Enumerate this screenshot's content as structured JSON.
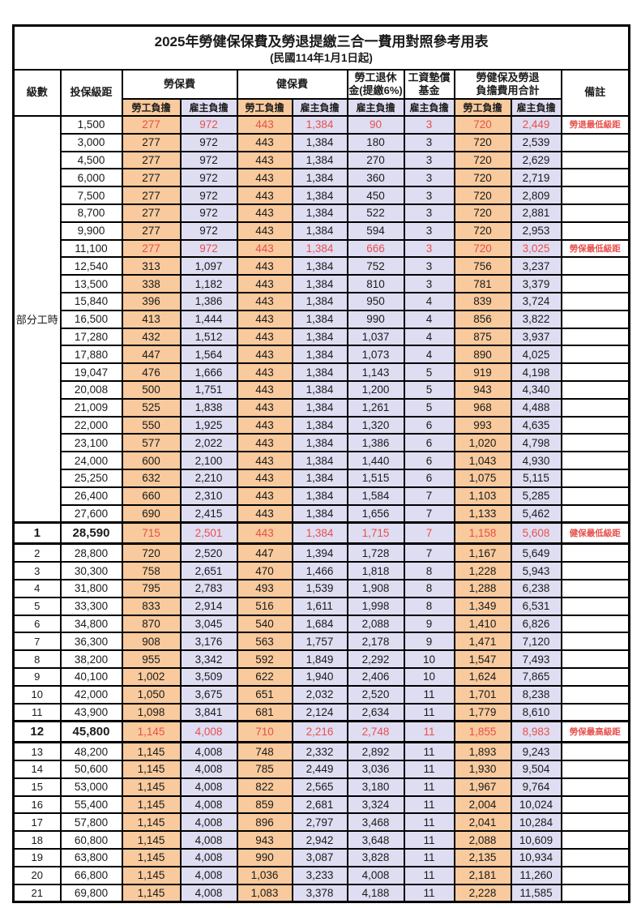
{
  "title": "2025年勞健保保費及勞退提繳三合一費用對照參考用表",
  "subtitle": "(民國114年1月1日起)",
  "colors": {
    "employee_bg": "#F8CA9D",
    "employer_bg": "#DFDDF2",
    "highlight_red": "#E8504C"
  },
  "header": {
    "level": "級數",
    "bracket": "投保級距",
    "labor_insurance": "勞保費",
    "health_insurance": "健保費",
    "pension_line1": "勞工退休",
    "pension_line2": "金(提繳6%)",
    "wage_fund_line1": "工資墊償",
    "wage_fund_line2": "基金",
    "total_line1": "勞健保及勞退",
    "total_line2": "負擔費用合計",
    "remark": "備註",
    "employee": "勞工負擔",
    "employer": "雇主負擔"
  },
  "part_time_label": "部分工時",
  "part_time_rowspan": 23,
  "rows": [
    {
      "level": "",
      "bracket": "1,500",
      "labor_emp": "277",
      "labor_er": "972",
      "health_emp": "443",
      "health_er": "1,384",
      "pension_er": "90",
      "wage_fund_er": "3",
      "total_emp": "720",
      "total_er": "2,449",
      "remark": "勞退最低級距",
      "highlight": true,
      "emphasis": false
    },
    {
      "level": "",
      "bracket": "3,000",
      "labor_emp": "277",
      "labor_er": "972",
      "health_emp": "443",
      "health_er": "1,384",
      "pension_er": "180",
      "wage_fund_er": "3",
      "total_emp": "720",
      "total_er": "2,539",
      "remark": "",
      "highlight": false,
      "emphasis": false
    },
    {
      "level": "",
      "bracket": "4,500",
      "labor_emp": "277",
      "labor_er": "972",
      "health_emp": "443",
      "health_er": "1,384",
      "pension_er": "270",
      "wage_fund_er": "3",
      "total_emp": "720",
      "total_er": "2,629",
      "remark": "",
      "highlight": false,
      "emphasis": false
    },
    {
      "level": "",
      "bracket": "6,000",
      "labor_emp": "277",
      "labor_er": "972",
      "health_emp": "443",
      "health_er": "1,384",
      "pension_er": "360",
      "wage_fund_er": "3",
      "total_emp": "720",
      "total_er": "2,719",
      "remark": "",
      "highlight": false,
      "emphasis": false
    },
    {
      "level": "",
      "bracket": "7,500",
      "labor_emp": "277",
      "labor_er": "972",
      "health_emp": "443",
      "health_er": "1,384",
      "pension_er": "450",
      "wage_fund_er": "3",
      "total_emp": "720",
      "total_er": "2,809",
      "remark": "",
      "highlight": false,
      "emphasis": false
    },
    {
      "level": "",
      "bracket": "8,700",
      "labor_emp": "277",
      "labor_er": "972",
      "health_emp": "443",
      "health_er": "1,384",
      "pension_er": "522",
      "wage_fund_er": "3",
      "total_emp": "720",
      "total_er": "2,881",
      "remark": "",
      "highlight": false,
      "emphasis": false
    },
    {
      "level": "",
      "bracket": "9,900",
      "labor_emp": "277",
      "labor_er": "972",
      "health_emp": "443",
      "health_er": "1,384",
      "pension_er": "594",
      "wage_fund_er": "3",
      "total_emp": "720",
      "total_er": "2,953",
      "remark": "",
      "highlight": false,
      "emphasis": false
    },
    {
      "level": "",
      "bracket": "11,100",
      "labor_emp": "277",
      "labor_er": "972",
      "health_emp": "443",
      "health_er": "1,384",
      "pension_er": "666",
      "wage_fund_er": "3",
      "total_emp": "720",
      "total_er": "3,025",
      "remark": "勞保最低級距",
      "highlight": true,
      "emphasis": false
    },
    {
      "level": "",
      "bracket": "12,540",
      "labor_emp": "313",
      "labor_er": "1,097",
      "health_emp": "443",
      "health_er": "1,384",
      "pension_er": "752",
      "wage_fund_er": "3",
      "total_emp": "756",
      "total_er": "3,237",
      "remark": "",
      "highlight": false,
      "emphasis": false
    },
    {
      "level": "",
      "bracket": "13,500",
      "labor_emp": "338",
      "labor_er": "1,182",
      "health_emp": "443",
      "health_er": "1,384",
      "pension_er": "810",
      "wage_fund_er": "3",
      "total_emp": "781",
      "total_er": "3,379",
      "remark": "",
      "highlight": false,
      "emphasis": false
    },
    {
      "level": "",
      "bracket": "15,840",
      "labor_emp": "396",
      "labor_er": "1,386",
      "health_emp": "443",
      "health_er": "1,384",
      "pension_er": "950",
      "wage_fund_er": "4",
      "total_emp": "839",
      "total_er": "3,724",
      "remark": "",
      "highlight": false,
      "emphasis": false
    },
    {
      "level": "",
      "bracket": "16,500",
      "labor_emp": "413",
      "labor_er": "1,444",
      "health_emp": "443",
      "health_er": "1,384",
      "pension_er": "990",
      "wage_fund_er": "4",
      "total_emp": "856",
      "total_er": "3,822",
      "remark": "",
      "highlight": false,
      "emphasis": false
    },
    {
      "level": "",
      "bracket": "17,280",
      "labor_emp": "432",
      "labor_er": "1,512",
      "health_emp": "443",
      "health_er": "1,384",
      "pension_er": "1,037",
      "wage_fund_er": "4",
      "total_emp": "875",
      "total_er": "3,937",
      "remark": "",
      "highlight": false,
      "emphasis": false
    },
    {
      "level": "",
      "bracket": "17,880",
      "labor_emp": "447",
      "labor_er": "1,564",
      "health_emp": "443",
      "health_er": "1,384",
      "pension_er": "1,073",
      "wage_fund_er": "4",
      "total_emp": "890",
      "total_er": "4,025",
      "remark": "",
      "highlight": false,
      "emphasis": false
    },
    {
      "level": "",
      "bracket": "19,047",
      "labor_emp": "476",
      "labor_er": "1,666",
      "health_emp": "443",
      "health_er": "1,384",
      "pension_er": "1,143",
      "wage_fund_er": "5",
      "total_emp": "919",
      "total_er": "4,198",
      "remark": "",
      "highlight": false,
      "emphasis": false
    },
    {
      "level": "",
      "bracket": "20,008",
      "labor_emp": "500",
      "labor_er": "1,751",
      "health_emp": "443",
      "health_er": "1,384",
      "pension_er": "1,200",
      "wage_fund_er": "5",
      "total_emp": "943",
      "total_er": "4,340",
      "remark": "",
      "highlight": false,
      "emphasis": false
    },
    {
      "level": "",
      "bracket": "21,009",
      "labor_emp": "525",
      "labor_er": "1,838",
      "health_emp": "443",
      "health_er": "1,384",
      "pension_er": "1,261",
      "wage_fund_er": "5",
      "total_emp": "968",
      "total_er": "4,488",
      "remark": "",
      "highlight": false,
      "emphasis": false
    },
    {
      "level": "",
      "bracket": "22,000",
      "labor_emp": "550",
      "labor_er": "1,925",
      "health_emp": "443",
      "health_er": "1,384",
      "pension_er": "1,320",
      "wage_fund_er": "6",
      "total_emp": "993",
      "total_er": "4,635",
      "remark": "",
      "highlight": false,
      "emphasis": false
    },
    {
      "level": "",
      "bracket": "23,100",
      "labor_emp": "577",
      "labor_er": "2,022",
      "health_emp": "443",
      "health_er": "1,384",
      "pension_er": "1,386",
      "wage_fund_er": "6",
      "total_emp": "1,020",
      "total_er": "4,798",
      "remark": "",
      "highlight": false,
      "emphasis": false
    },
    {
      "level": "",
      "bracket": "24,000",
      "labor_emp": "600",
      "labor_er": "2,100",
      "health_emp": "443",
      "health_er": "1,384",
      "pension_er": "1,440",
      "wage_fund_er": "6",
      "total_emp": "1,043",
      "total_er": "4,930",
      "remark": "",
      "highlight": false,
      "emphasis": false
    },
    {
      "level": "",
      "bracket": "25,250",
      "labor_emp": "632",
      "labor_er": "2,210",
      "health_emp": "443",
      "health_er": "1,384",
      "pension_er": "1,515",
      "wage_fund_er": "6",
      "total_emp": "1,075",
      "total_er": "5,115",
      "remark": "",
      "highlight": false,
      "emphasis": false
    },
    {
      "level": "",
      "bracket": "26,400",
      "labor_emp": "660",
      "labor_er": "2,310",
      "health_emp": "443",
      "health_er": "1,384",
      "pension_er": "1,584",
      "wage_fund_er": "7",
      "total_emp": "1,103",
      "total_er": "5,285",
      "remark": "",
      "highlight": false,
      "emphasis": false
    },
    {
      "level": "",
      "bracket": "27,600",
      "labor_emp": "690",
      "labor_er": "2,415",
      "health_emp": "443",
      "health_er": "1,384",
      "pension_er": "1,656",
      "wage_fund_er": "7",
      "total_emp": "1,133",
      "total_er": "5,462",
      "remark": "",
      "highlight": false,
      "emphasis": false
    },
    {
      "level": "1",
      "bracket": "28,590",
      "labor_emp": "715",
      "labor_er": "2,501",
      "health_emp": "443",
      "health_er": "1,384",
      "pension_er": "1,715",
      "wage_fund_er": "7",
      "total_emp": "1,158",
      "total_er": "5,608",
      "remark": "健保最低級距",
      "highlight": true,
      "emphasis": true
    },
    {
      "level": "2",
      "bracket": "28,800",
      "labor_emp": "720",
      "labor_er": "2,520",
      "health_emp": "447",
      "health_er": "1,394",
      "pension_er": "1,728",
      "wage_fund_er": "7",
      "total_emp": "1,167",
      "total_er": "5,649",
      "remark": "",
      "highlight": false,
      "emphasis": false
    },
    {
      "level": "3",
      "bracket": "30,300",
      "labor_emp": "758",
      "labor_er": "2,651",
      "health_emp": "470",
      "health_er": "1,466",
      "pension_er": "1,818",
      "wage_fund_er": "8",
      "total_emp": "1,228",
      "total_er": "5,943",
      "remark": "",
      "highlight": false,
      "emphasis": false
    },
    {
      "level": "4",
      "bracket": "31,800",
      "labor_emp": "795",
      "labor_er": "2,783",
      "health_emp": "493",
      "health_er": "1,539",
      "pension_er": "1,908",
      "wage_fund_er": "8",
      "total_emp": "1,288",
      "total_er": "6,238",
      "remark": "",
      "highlight": false,
      "emphasis": false
    },
    {
      "level": "5",
      "bracket": "33,300",
      "labor_emp": "833",
      "labor_er": "2,914",
      "health_emp": "516",
      "health_er": "1,611",
      "pension_er": "1,998",
      "wage_fund_er": "8",
      "total_emp": "1,349",
      "total_er": "6,531",
      "remark": "",
      "highlight": false,
      "emphasis": false
    },
    {
      "level": "6",
      "bracket": "34,800",
      "labor_emp": "870",
      "labor_er": "3,045",
      "health_emp": "540",
      "health_er": "1,684",
      "pension_er": "2,088",
      "wage_fund_er": "9",
      "total_emp": "1,410",
      "total_er": "6,826",
      "remark": "",
      "highlight": false,
      "emphasis": false
    },
    {
      "level": "7",
      "bracket": "36,300",
      "labor_emp": "908",
      "labor_er": "3,176",
      "health_emp": "563",
      "health_er": "1,757",
      "pension_er": "2,178",
      "wage_fund_er": "9",
      "total_emp": "1,471",
      "total_er": "7,120",
      "remark": "",
      "highlight": false,
      "emphasis": false
    },
    {
      "level": "8",
      "bracket": "38,200",
      "labor_emp": "955",
      "labor_er": "3,342",
      "health_emp": "592",
      "health_er": "1,849",
      "pension_er": "2,292",
      "wage_fund_er": "10",
      "total_emp": "1,547",
      "total_er": "7,493",
      "remark": "",
      "highlight": false,
      "emphasis": false
    },
    {
      "level": "9",
      "bracket": "40,100",
      "labor_emp": "1,002",
      "labor_er": "3,509",
      "health_emp": "622",
      "health_er": "1,940",
      "pension_er": "2,406",
      "wage_fund_er": "10",
      "total_emp": "1,624",
      "total_er": "7,865",
      "remark": "",
      "highlight": false,
      "emphasis": false
    },
    {
      "level": "10",
      "bracket": "42,000",
      "labor_emp": "1,050",
      "labor_er": "3,675",
      "health_emp": "651",
      "health_er": "2,032",
      "pension_er": "2,520",
      "wage_fund_er": "11",
      "total_emp": "1,701",
      "total_er": "8,238",
      "remark": "",
      "highlight": false,
      "emphasis": false
    },
    {
      "level": "11",
      "bracket": "43,900",
      "labor_emp": "1,098",
      "labor_er": "3,841",
      "health_emp": "681",
      "health_er": "2,124",
      "pension_er": "2,634",
      "wage_fund_er": "11",
      "total_emp": "1,779",
      "total_er": "8,610",
      "remark": "",
      "highlight": false,
      "emphasis": false
    },
    {
      "level": "12",
      "bracket": "45,800",
      "labor_emp": "1,145",
      "labor_er": "4,008",
      "health_emp": "710",
      "health_er": "2,216",
      "pension_er": "2,748",
      "wage_fund_er": "11",
      "total_emp": "1,855",
      "total_er": "8,983",
      "remark": "勞保最高級距",
      "highlight": true,
      "emphasis": true
    },
    {
      "level": "13",
      "bracket": "48,200",
      "labor_emp": "1,145",
      "labor_er": "4,008",
      "health_emp": "748",
      "health_er": "2,332",
      "pension_er": "2,892",
      "wage_fund_er": "11",
      "total_emp": "1,893",
      "total_er": "9,243",
      "remark": "",
      "highlight": false,
      "emphasis": false
    },
    {
      "level": "14",
      "bracket": "50,600",
      "labor_emp": "1,145",
      "labor_er": "4,008",
      "health_emp": "785",
      "health_er": "2,449",
      "pension_er": "3,036",
      "wage_fund_er": "11",
      "total_emp": "1,930",
      "total_er": "9,504",
      "remark": "",
      "highlight": false,
      "emphasis": false
    },
    {
      "level": "15",
      "bracket": "53,000",
      "labor_emp": "1,145",
      "labor_er": "4,008",
      "health_emp": "822",
      "health_er": "2,565",
      "pension_er": "3,180",
      "wage_fund_er": "11",
      "total_emp": "1,967",
      "total_er": "9,764",
      "remark": "",
      "highlight": false,
      "emphasis": false
    },
    {
      "level": "16",
      "bracket": "55,400",
      "labor_emp": "1,145",
      "labor_er": "4,008",
      "health_emp": "859",
      "health_er": "2,681",
      "pension_er": "3,324",
      "wage_fund_er": "11",
      "total_emp": "2,004",
      "total_er": "10,024",
      "remark": "",
      "highlight": false,
      "emphasis": false
    },
    {
      "level": "17",
      "bracket": "57,800",
      "labor_emp": "1,145",
      "labor_er": "4,008",
      "health_emp": "896",
      "health_er": "2,797",
      "pension_er": "3,468",
      "wage_fund_er": "11",
      "total_emp": "2,041",
      "total_er": "10,284",
      "remark": "",
      "highlight": false,
      "emphasis": false
    },
    {
      "level": "18",
      "bracket": "60,800",
      "labor_emp": "1,145",
      "labor_er": "4,008",
      "health_emp": "943",
      "health_er": "2,942",
      "pension_er": "3,648",
      "wage_fund_er": "11",
      "total_emp": "2,088",
      "total_er": "10,609",
      "remark": "",
      "highlight": false,
      "emphasis": false
    },
    {
      "level": "19",
      "bracket": "63,800",
      "labor_emp": "1,145",
      "labor_er": "4,008",
      "health_emp": "990",
      "health_er": "3,087",
      "pension_er": "3,828",
      "wage_fund_er": "11",
      "total_emp": "2,135",
      "total_er": "10,934",
      "remark": "",
      "highlight": false,
      "emphasis": false
    },
    {
      "level": "20",
      "bracket": "66,800",
      "labor_emp": "1,145",
      "labor_er": "4,008",
      "health_emp": "1,036",
      "health_er": "3,233",
      "pension_er": "4,008",
      "wage_fund_er": "11",
      "total_emp": "2,181",
      "total_er": "11,260",
      "remark": "",
      "highlight": false,
      "emphasis": false
    },
    {
      "level": "21",
      "bracket": "69,800",
      "labor_emp": "1,145",
      "labor_er": "4,008",
      "health_emp": "1,083",
      "health_er": "3,378",
      "pension_er": "4,188",
      "wage_fund_er": "11",
      "total_emp": "2,228",
      "total_er": "11,585",
      "remark": "",
      "highlight": false,
      "emphasis": false
    }
  ]
}
